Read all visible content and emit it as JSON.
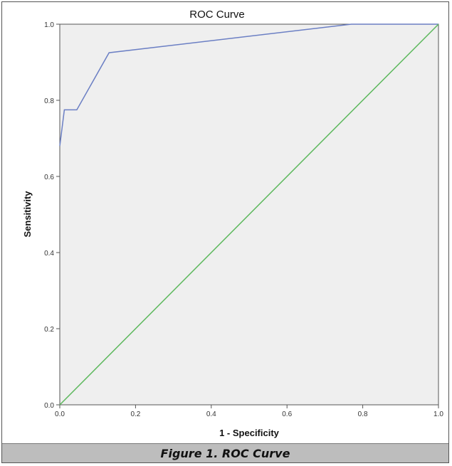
{
  "chart_data": {
    "type": "line",
    "title": "ROC Curve",
    "xlabel": "1 - Specificity",
    "ylabel": "Sensitivity",
    "xlim": [
      0.0,
      1.0
    ],
    "ylim": [
      0.0,
      1.0
    ],
    "x_ticks": [
      "0.0",
      "0.2",
      "0.4",
      "0.6",
      "0.8",
      "1.0"
    ],
    "y_ticks": [
      "0.0",
      "0.2",
      "0.4",
      "0.6",
      "0.8",
      "1.0"
    ],
    "grid": false,
    "background": "#efefef",
    "series": [
      {
        "color": "#6b7fc4",
        "points": [
          [
            0.0,
            0.68
          ],
          [
            0.012,
            0.775
          ],
          [
            0.045,
            0.775
          ],
          [
            0.13,
            0.925
          ],
          [
            0.77,
            1.0
          ],
          [
            1.0,
            1.0
          ]
        ]
      },
      {
        "color": "#5cb85c",
        "points": [
          [
            0.0,
            0.0
          ],
          [
            1.0,
            1.0
          ]
        ]
      }
    ]
  },
  "caption": "Figure 1. ROC Curve"
}
